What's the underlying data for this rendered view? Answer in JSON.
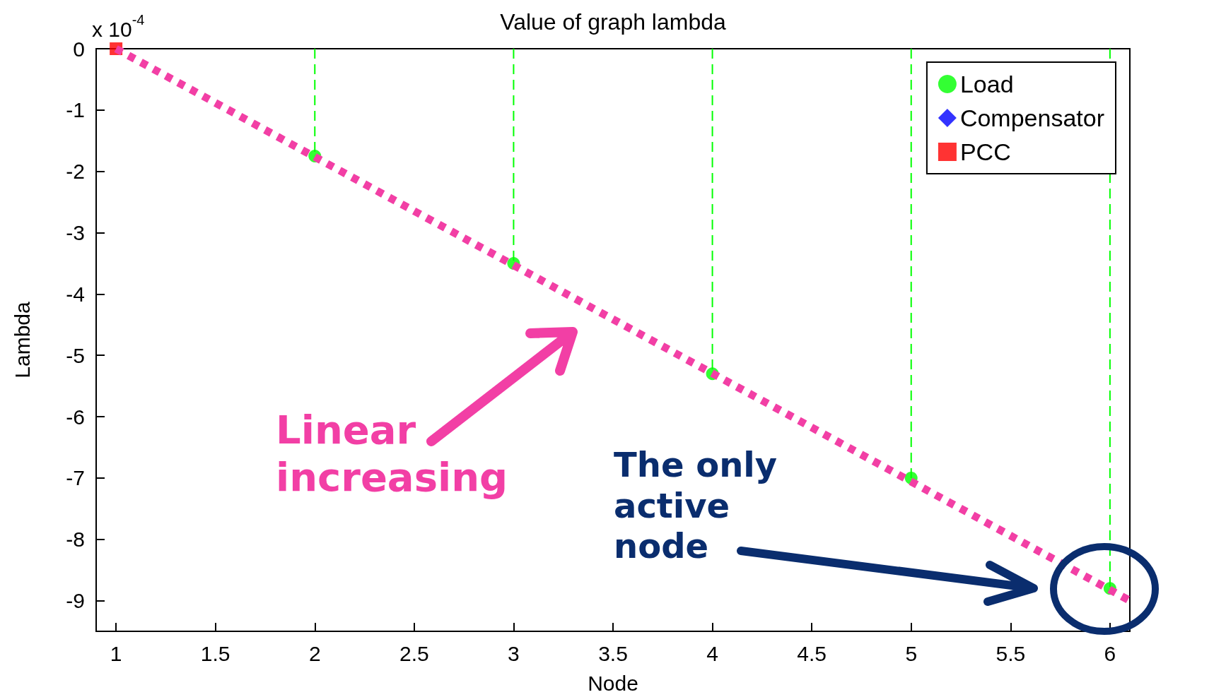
{
  "chart_data": {
    "type": "lollipop",
    "title": "Value of graph lambda",
    "xlabel": "Node",
    "ylabel": "Lambda",
    "xlim": [
      0.9,
      6.1
    ],
    "xticks": [
      1,
      1.5,
      2,
      2.5,
      3,
      3.5,
      4,
      4.5,
      5,
      5.5,
      6
    ],
    "ylim": [
      -9.5,
      0
    ],
    "yticks": [
      0,
      -1,
      -2,
      -3,
      -4,
      -5,
      -6,
      -7,
      -8,
      -9
    ],
    "legend": "top right",
    "series": [
      {
        "name": "Load",
        "color": "#00ff00",
        "marker": "circle",
        "line_style": "dashed",
        "x": [
          2,
          3,
          4,
          5,
          6
        ],
        "values": [
          -1.75,
          -3.5,
          -5.3,
          -7.0,
          -8.8
        ]
      },
      {
        "name": "Compensator",
        "color": "#0000ff",
        "marker": "diamond",
        "line_style": "solid"
      },
      {
        "name": "PCC",
        "color": "#ff0000",
        "marker": "square",
        "line_style": "solid",
        "x": [
          1
        ],
        "values": [
          0
        ]
      },
      {
        "type": "line",
        "color": "#f23fa5",
        "marker": "none",
        "line_style": "dotted",
        "x": [
          1,
          6.1
        ],
        "values": [
          0,
          -9.0
        ]
      }
    ],
    "annotations": [
      "x 10$^{-4}$",
      "Linear increasing",
      "The only active node"
    ]
  }
}
